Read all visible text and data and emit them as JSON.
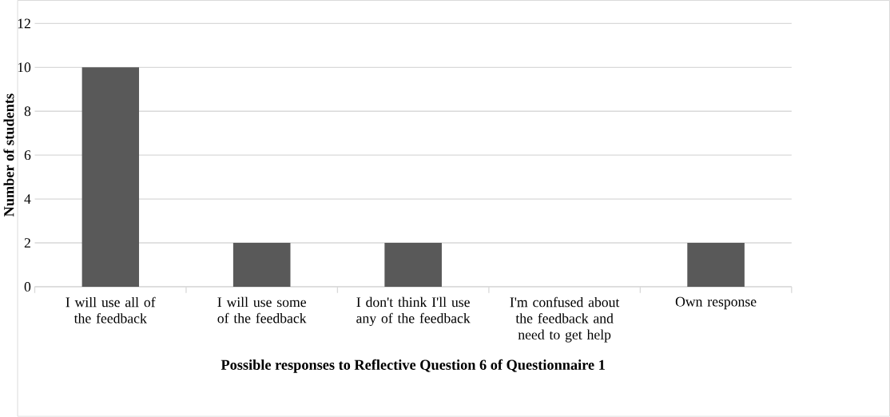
{
  "chart_data": {
    "type": "bar",
    "xlabel": "Possible responses to Reflective Question 6 of Questionnaire 1",
    "ylabel": "Number of students",
    "categories": [
      "I will use all of the feedback",
      "I will use some of the feedback",
      "I don't think I'll use any of the feedback",
      "I'm confused about the feedback and need to get help",
      "Own response"
    ],
    "values": [
      10,
      2,
      2,
      0,
      2
    ],
    "color": "#595959",
    "ylim": [
      0,
      12
    ],
    "yticks": [
      0,
      2,
      4,
      6,
      8,
      10,
      12
    ],
    "grid": "y"
  }
}
